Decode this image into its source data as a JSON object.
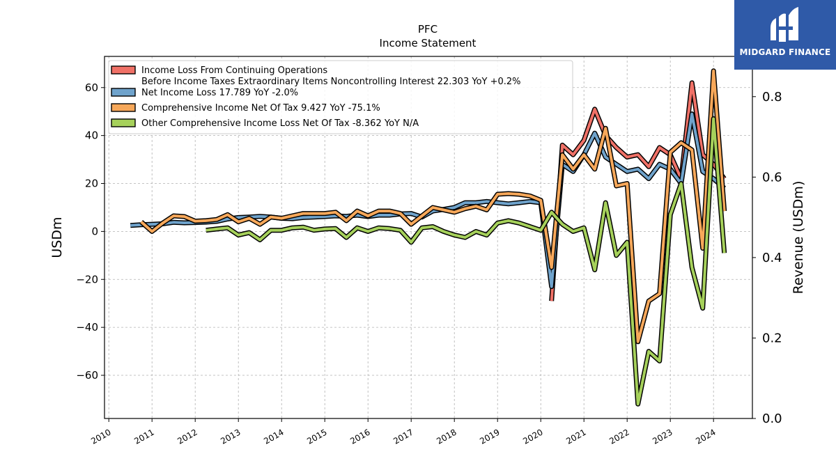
{
  "brand": {
    "logo_text": "MIDGARD FINANCE",
    "logo_color": "#2f5aa8"
  },
  "chart_data": {
    "type": "line",
    "title": "PFC",
    "subtitle": "Income Statement",
    "ylabel": "USDm",
    "ylabel_right": "Revenue (USDm)",
    "ylim": [
      -78,
      73
    ],
    "ylim_right": [
      0.0,
      0.9
    ],
    "yticks": [
      -60,
      -40,
      -20,
      0,
      20,
      40,
      60
    ],
    "yticks_right": [
      "0.0",
      "0.2",
      "0.4",
      "0.6",
      "0.8"
    ],
    "xlim": [
      2009.9,
      2024.9
    ],
    "xticks": [
      "2010",
      "2011",
      "2012",
      "2013",
      "2014",
      "2015",
      "2016",
      "2017",
      "2018",
      "2019",
      "2020",
      "2021",
      "2022",
      "2023",
      "2024"
    ],
    "grid": true,
    "legend_position": "upper-left",
    "series": [
      {
        "name": "Income Loss From Continuing Operations\nBefore Income Taxes Extraordinary Items Noncontrolling Interest  22.303 YoY +0.2%",
        "color": "#f07167",
        "points": [
          [
            2020.25,
            -29
          ],
          [
            2020.5,
            36
          ],
          [
            2020.75,
            32
          ],
          [
            2021.0,
            38
          ],
          [
            2021.25,
            51
          ],
          [
            2021.5,
            40
          ],
          [
            2021.75,
            35
          ],
          [
            2022.0,
            31
          ],
          [
            2022.25,
            32
          ],
          [
            2022.5,
            27
          ],
          [
            2022.75,
            35
          ],
          [
            2023.0,
            32
          ],
          [
            2023.25,
            22
          ],
          [
            2023.5,
            62
          ],
          [
            2023.75,
            32
          ],
          [
            2024.0,
            28
          ],
          [
            2024.25,
            22
          ]
        ]
      },
      {
        "name": "Net Income Loss  17.789 YoY -2.0%",
        "color": "#6fa3cc",
        "points": [
          [
            2010.5,
            2.5
          ],
          [
            2010.75,
            2.8
          ],
          [
            2011.0,
            3.0
          ],
          [
            2011.25,
            3.2
          ],
          [
            2011.5,
            3.8
          ],
          [
            2011.75,
            3.6
          ],
          [
            2012.0,
            3.7
          ],
          [
            2012.25,
            3.9
          ],
          [
            2012.5,
            4.2
          ],
          [
            2012.75,
            5.2
          ],
          [
            2013.0,
            5.8
          ],
          [
            2013.25,
            6.0
          ],
          [
            2013.5,
            6.3
          ],
          [
            2013.75,
            6.0
          ],
          [
            2014.0,
            5.5
          ],
          [
            2014.25,
            5.3
          ],
          [
            2014.5,
            5.8
          ],
          [
            2014.75,
            6.0
          ],
          [
            2015.0,
            6.2
          ],
          [
            2015.25,
            6.5
          ],
          [
            2015.5,
            6.3
          ],
          [
            2015.75,
            6.8
          ],
          [
            2016.0,
            6.2
          ],
          [
            2016.25,
            6.8
          ],
          [
            2016.5,
            6.8
          ],
          [
            2016.75,
            7.3
          ],
          [
            2017.0,
            7.5
          ],
          [
            2017.25,
            6.0
          ],
          [
            2017.5,
            8.5
          ],
          [
            2017.75,
            9.2
          ],
          [
            2018.0,
            10.0
          ],
          [
            2018.25,
            12.0
          ],
          [
            2018.5,
            12.0
          ],
          [
            2018.75,
            12.5
          ],
          [
            2019.0,
            12.0
          ],
          [
            2019.25,
            11.5
          ],
          [
            2019.5,
            12.0
          ],
          [
            2019.75,
            12.5
          ],
          [
            2020.0,
            12.0
          ],
          [
            2020.25,
            -23
          ],
          [
            2020.5,
            28
          ],
          [
            2020.75,
            25
          ],
          [
            2021.0,
            32
          ],
          [
            2021.25,
            41
          ],
          [
            2021.5,
            31
          ],
          [
            2021.75,
            28
          ],
          [
            2022.0,
            25
          ],
          [
            2022.25,
            26
          ],
          [
            2022.5,
            22
          ],
          [
            2022.75,
            28
          ],
          [
            2023.0,
            26
          ],
          [
            2023.25,
            20
          ],
          [
            2023.5,
            49
          ],
          [
            2023.75,
            25
          ],
          [
            2024.0,
            22
          ],
          [
            2024.25,
            18
          ]
        ]
      },
      {
        "name": "Comprehensive Income Net Of Tax  9.427 YoY -75.1%",
        "color": "#f7a85a",
        "points": [
          [
            2010.75,
            4.0
          ],
          [
            2011.0,
            0.0
          ],
          [
            2011.25,
            3.5
          ],
          [
            2011.5,
            6.5
          ],
          [
            2011.75,
            6.2
          ],
          [
            2012.0,
            4.3
          ],
          [
            2012.25,
            4.5
          ],
          [
            2012.5,
            5.0
          ],
          [
            2012.75,
            7.0
          ],
          [
            2013.0,
            4.0
          ],
          [
            2013.25,
            5.5
          ],
          [
            2013.5,
            3.0
          ],
          [
            2013.75,
            6.0
          ],
          [
            2014.0,
            5.5
          ],
          [
            2014.25,
            6.5
          ],
          [
            2014.5,
            7.5
          ],
          [
            2014.75,
            7.5
          ],
          [
            2015.0,
            7.5
          ],
          [
            2015.25,
            8.0
          ],
          [
            2015.5,
            4.5
          ],
          [
            2015.75,
            8.5
          ],
          [
            2016.0,
            6.5
          ],
          [
            2016.25,
            8.5
          ],
          [
            2016.5,
            8.5
          ],
          [
            2016.75,
            7.5
          ],
          [
            2017.0,
            3.0
          ],
          [
            2017.25,
            6.5
          ],
          [
            2017.5,
            10.0
          ],
          [
            2017.75,
            9.0
          ],
          [
            2018.0,
            8.0
          ],
          [
            2018.25,
            9.5
          ],
          [
            2018.5,
            10.5
          ],
          [
            2018.75,
            9.0
          ],
          [
            2019.0,
            15.5
          ],
          [
            2019.25,
            15.8
          ],
          [
            2019.5,
            15.5
          ],
          [
            2019.75,
            14.8
          ],
          [
            2020.0,
            13.0
          ],
          [
            2020.25,
            -15
          ],
          [
            2020.5,
            32
          ],
          [
            2020.75,
            26
          ],
          [
            2021.0,
            32
          ],
          [
            2021.25,
            26
          ],
          [
            2021.5,
            43
          ],
          [
            2021.75,
            19
          ],
          [
            2022.0,
            20
          ],
          [
            2022.25,
            -46
          ],
          [
            2022.5,
            -29
          ],
          [
            2022.75,
            -26
          ],
          [
            2023.0,
            33
          ],
          [
            2023.25,
            37
          ],
          [
            2023.5,
            34
          ],
          [
            2023.75,
            -7
          ],
          [
            2024.0,
            67
          ],
          [
            2024.25,
            8.5
          ]
        ]
      },
      {
        "name": "Other Comprehensive Income Loss Net Of Tax  -8.362 YoY N/A",
        "color": "#a6d15b",
        "points": [
          [
            2012.25,
            0.5
          ],
          [
            2012.5,
            1.0
          ],
          [
            2012.75,
            1.5
          ],
          [
            2013.0,
            -1.5
          ],
          [
            2013.25,
            -0.5
          ],
          [
            2013.5,
            -3.5
          ],
          [
            2013.75,
            0.5
          ],
          [
            2014.0,
            0.5
          ],
          [
            2014.25,
            1.5
          ],
          [
            2014.5,
            1.8
          ],
          [
            2014.75,
            0.5
          ],
          [
            2015.0,
            1.0
          ],
          [
            2015.25,
            1.2
          ],
          [
            2015.5,
            -2.5
          ],
          [
            2015.75,
            1.5
          ],
          [
            2016.0,
            0.0
          ],
          [
            2016.25,
            1.5
          ],
          [
            2016.5,
            1.2
          ],
          [
            2016.75,
            0.5
          ],
          [
            2017.0,
            -4.5
          ],
          [
            2017.25,
            1.5
          ],
          [
            2017.5,
            2.0
          ],
          [
            2017.75,
            0.0
          ],
          [
            2018.0,
            -1.5
          ],
          [
            2018.25,
            -2.5
          ],
          [
            2018.5,
            0.0
          ],
          [
            2018.75,
            -1.5
          ],
          [
            2019.0,
            3.5
          ],
          [
            2019.25,
            4.5
          ],
          [
            2019.5,
            3.5
          ],
          [
            2019.75,
            2.0
          ],
          [
            2020.0,
            0.5
          ],
          [
            2020.25,
            8.0
          ],
          [
            2020.5,
            3.0
          ],
          [
            2020.75,
            0.0
          ],
          [
            2021.0,
            1.5
          ],
          [
            2021.25,
            -16
          ],
          [
            2021.5,
            12
          ],
          [
            2021.75,
            -10
          ],
          [
            2022.0,
            -4.5
          ],
          [
            2022.25,
            -72
          ],
          [
            2022.5,
            -50
          ],
          [
            2022.75,
            -54
          ],
          [
            2023.0,
            7.0
          ],
          [
            2023.25,
            20
          ],
          [
            2023.5,
            -15
          ],
          [
            2023.75,
            -32
          ],
          [
            2024.0,
            47
          ],
          [
            2024.25,
            -9
          ]
        ]
      }
    ]
  }
}
